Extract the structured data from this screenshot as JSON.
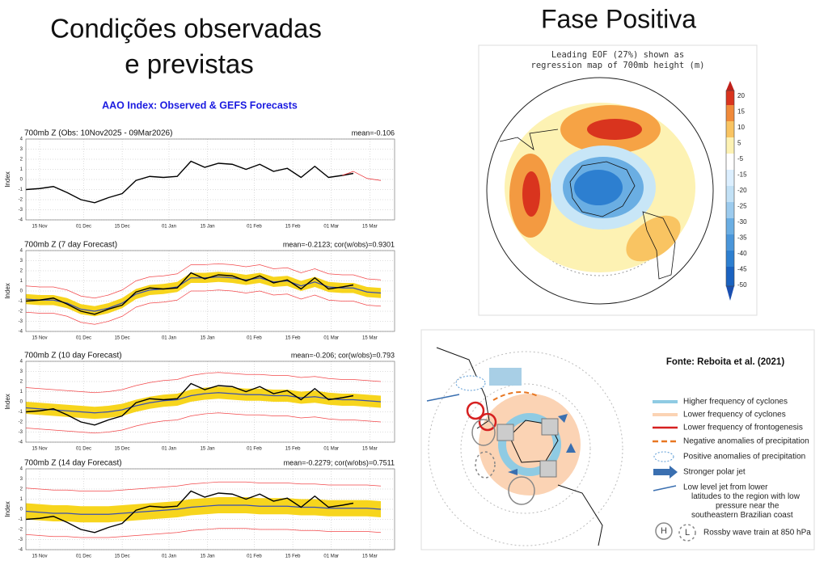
{
  "slide": {
    "title_left": [
      "Condições observadas",
      "e previstas"
    ],
    "title_right": "Fase Positiva",
    "header": "AAO Index: Observed & GEFS Forecasts"
  },
  "chart_data": [
    {
      "type": "line",
      "title": "700mb Z (Obs: 10Nov2025 - 09Mar2026)",
      "stats": "mean=-0.106",
      "ylabel": "Index",
      "x": [
        "2025-11-10",
        "2025-11-15",
        "2025-11-20",
        "2025-11-25",
        "2025-11-30",
        "2025-12-05",
        "2025-12-10",
        "2025-12-15",
        "2025-12-20",
        "2025-12-25",
        "2025-12-30",
        "2026-01-04",
        "2026-01-09",
        "2026-01-14",
        "2026-01-19",
        "2026-01-24",
        "2026-01-29",
        "2026-02-03",
        "2026-02-08",
        "2026-02-13",
        "2026-02-18",
        "2026-02-23",
        "2026-02-28",
        "2026-03-05",
        "2026-03-09",
        "2026-03-14",
        "2026-03-19"
      ],
      "xlim": [
        "2025-11-10",
        "2026-03-24"
      ],
      "xticks": [
        {
          "value": "2025-11-15",
          "label": "15 Nov"
        },
        {
          "value": "2025-12-01",
          "label": "01 Dec"
        },
        {
          "value": "2025-12-15",
          "label": "15 Dec"
        },
        {
          "value": "2026-01-01",
          "label": "01 Jan"
        },
        {
          "value": "2026-01-15",
          "label": "15 Jan"
        },
        {
          "value": "2026-02-01",
          "label": "01 Feb"
        },
        {
          "value": "2026-02-15",
          "label": "15 Feb"
        },
        {
          "value": "2026-03-01",
          "label": "01 Mar"
        },
        {
          "value": "2026-03-15",
          "label": "15 Mar"
        }
      ],
      "ylim": [
        -4,
        4
      ],
      "yticks": [
        -4,
        -3,
        -2,
        -1,
        0,
        1,
        2,
        3,
        4
      ],
      "grid": true,
      "bands": [],
      "series": [
        {
          "color": "#000000",
          "values": [
            -1.0,
            -0.9,
            -0.7,
            -1.3,
            -2.0,
            -2.3,
            -1.8,
            -1.4,
            -0.1,
            0.3,
            0.2,
            0.3,
            1.8,
            1.2,
            1.6,
            1.5,
            1.0,
            1.5,
            0.8,
            1.1,
            0.2,
            1.3,
            0.2,
            0.4,
            0.6,
            null,
            null
          ]
        },
        {
          "color": "#e8242a",
          "values": [
            null,
            null,
            null,
            null,
            null,
            null,
            null,
            null,
            null,
            null,
            null,
            null,
            null,
            null,
            null,
            null,
            null,
            null,
            null,
            null,
            null,
            null,
            null,
            0.4,
            0.8,
            0.1,
            -0.1
          ]
        }
      ]
    },
    {
      "type": "line",
      "title": "700mb Z (7 day Forecast)",
      "stats": "mean=-0.2123; cor(w/obs)=0.9301",
      "ylabel": "Index",
      "x": [
        "2025-11-10",
        "2025-11-15",
        "2025-11-20",
        "2025-11-25",
        "2025-11-30",
        "2025-12-05",
        "2025-12-10",
        "2025-12-15",
        "2025-12-20",
        "2025-12-25",
        "2025-12-30",
        "2026-01-04",
        "2026-01-09",
        "2026-01-14",
        "2026-01-19",
        "2026-01-24",
        "2026-01-29",
        "2026-02-03",
        "2026-02-08",
        "2026-02-13",
        "2026-02-18",
        "2026-02-23",
        "2026-02-28",
        "2026-03-05",
        "2026-03-09",
        "2026-03-14",
        "2026-03-19"
      ],
      "xlim": [
        "2025-11-10",
        "2026-03-24"
      ],
      "xticks": [
        {
          "value": "2025-11-15",
          "label": "15 Nov"
        },
        {
          "value": "2025-12-01",
          "label": "01 Dec"
        },
        {
          "value": "2025-12-15",
          "label": "15 Dec"
        },
        {
          "value": "2026-01-01",
          "label": "01 Jan"
        },
        {
          "value": "2026-01-15",
          "label": "15 Jan"
        },
        {
          "value": "2026-02-01",
          "label": "01 Feb"
        },
        {
          "value": "2026-02-15",
          "label": "15 Feb"
        },
        {
          "value": "2026-03-01",
          "label": "01 Mar"
        },
        {
          "value": "2026-03-15",
          "label": "15 Mar"
        }
      ],
      "ylim": [
        -4,
        4
      ],
      "yticks": [
        -4,
        -3,
        -2,
        -1,
        0,
        1,
        2,
        3,
        4
      ],
      "grid": true,
      "bands": [
        {
          "color": "#f7d51d",
          "lower": [
            -1.3,
            -1.4,
            -1.4,
            -1.7,
            -2.3,
            -2.5,
            -2.2,
            -1.7,
            -0.8,
            -0.4,
            -0.3,
            -0.1,
            0.8,
            0.8,
            0.9,
            0.8,
            0.6,
            0.8,
            0.4,
            0.5,
            0.0,
            0.4,
            -0.1,
            -0.2,
            -0.2,
            -0.6,
            -0.7
          ],
          "upper": [
            -0.3,
            -0.4,
            -0.4,
            -0.7,
            -1.3,
            -1.5,
            -1.2,
            -0.7,
            0.2,
            0.6,
            0.7,
            0.9,
            1.8,
            1.8,
            1.9,
            1.8,
            1.6,
            1.8,
            1.4,
            1.5,
            1.0,
            1.4,
            0.9,
            0.8,
            0.8,
            0.4,
            0.3
          ]
        }
      ],
      "series": [
        {
          "color": "#f2484b",
          "values": [
            -2.1,
            -2.2,
            -2.2,
            -2.5,
            -3.1,
            -3.3,
            -3.0,
            -2.5,
            -1.6,
            -1.2,
            -1.1,
            -0.9,
            0.0,
            0.0,
            0.1,
            0.0,
            -0.2,
            0.0,
            -0.4,
            -0.3,
            -0.8,
            -0.4,
            -0.9,
            -1.0,
            -1.0,
            -1.4,
            -1.5
          ]
        },
        {
          "color": "#f2484b",
          "values": [
            0.5,
            0.4,
            0.4,
            0.1,
            -0.5,
            -0.7,
            -0.4,
            0.1,
            1.0,
            1.4,
            1.5,
            1.7,
            2.6,
            2.6,
            2.7,
            2.6,
            2.4,
            2.6,
            2.2,
            2.3,
            1.8,
            2.2,
            1.7,
            1.6,
            1.6,
            1.2,
            1.1
          ]
        },
        {
          "color": "#3a4fb0",
          "values": [
            -0.8,
            -0.9,
            -0.9,
            -1.2,
            -1.8,
            -2.0,
            -1.7,
            -1.2,
            -0.3,
            0.1,
            0.2,
            0.4,
            1.3,
            1.3,
            1.4,
            1.3,
            1.1,
            1.3,
            0.9,
            1.0,
            0.5,
            0.9,
            0.4,
            0.3,
            0.3,
            -0.1,
            -0.2
          ]
        },
        {
          "color": "#000000",
          "values": [
            -1.0,
            -0.9,
            -0.7,
            -1.3,
            -2.0,
            -2.3,
            -1.8,
            -1.4,
            -0.1,
            0.3,
            0.2,
            0.3,
            1.8,
            1.2,
            1.6,
            1.5,
            1.0,
            1.5,
            0.8,
            1.1,
            0.2,
            1.3,
            0.2,
            0.4,
            0.6,
            null,
            null
          ]
        }
      ]
    },
    {
      "type": "line",
      "title": "700mb Z (10 day Forecast)",
      "stats": "mean=-0.206; cor(w/obs)=0.793",
      "ylabel": "Index",
      "x": [
        "2025-11-10",
        "2025-11-15",
        "2025-11-20",
        "2025-11-25",
        "2025-11-30",
        "2025-12-05",
        "2025-12-10",
        "2025-12-15",
        "2025-12-20",
        "2025-12-25",
        "2025-12-30",
        "2026-01-04",
        "2026-01-09",
        "2026-01-14",
        "2026-01-19",
        "2026-01-24",
        "2026-01-29",
        "2026-02-03",
        "2026-02-08",
        "2026-02-13",
        "2026-02-18",
        "2026-02-23",
        "2026-02-28",
        "2026-03-05",
        "2026-03-09",
        "2026-03-14",
        "2026-03-19"
      ],
      "xlim": [
        "2025-11-10",
        "2026-03-24"
      ],
      "xticks": [
        {
          "value": "2025-11-15",
          "label": "15 Nov"
        },
        {
          "value": "2025-12-01",
          "label": "01 Dec"
        },
        {
          "value": "2025-12-15",
          "label": "15 Dec"
        },
        {
          "value": "2026-01-01",
          "label": "01 Jan"
        },
        {
          "value": "2026-01-15",
          "label": "15 Jan"
        },
        {
          "value": "2026-02-01",
          "label": "01 Feb"
        },
        {
          "value": "2026-02-15",
          "label": "15 Feb"
        },
        {
          "value": "2026-03-01",
          "label": "01 Mar"
        },
        {
          "value": "2026-03-15",
          "label": "15 Mar"
        }
      ],
      "ylim": [
        -4,
        4
      ],
      "yticks": [
        -4,
        -3,
        -2,
        -1,
        0,
        1,
        2,
        3,
        4
      ],
      "grid": true,
      "bands": [
        {
          "color": "#f7d51d",
          "lower": [
            -1.2,
            -1.3,
            -1.4,
            -1.5,
            -1.6,
            -1.7,
            -1.6,
            -1.4,
            -1.0,
            -0.7,
            -0.5,
            -0.4,
            0.0,
            0.2,
            0.3,
            0.2,
            0.1,
            0.1,
            0.0,
            0.0,
            -0.2,
            -0.1,
            -0.3,
            -0.4,
            -0.4,
            -0.5,
            -0.6
          ],
          "upper": [
            0.0,
            -0.1,
            -0.2,
            -0.3,
            -0.4,
            -0.5,
            -0.4,
            -0.2,
            0.2,
            0.5,
            0.7,
            0.8,
            1.2,
            1.4,
            1.5,
            1.4,
            1.3,
            1.3,
            1.2,
            1.2,
            1.0,
            1.1,
            0.9,
            0.8,
            0.8,
            0.7,
            0.6
          ]
        }
      ],
      "series": [
        {
          "color": "#f2484b",
          "values": [
            -2.6,
            -2.7,
            -2.8,
            -2.9,
            -3.0,
            -3.1,
            -3.0,
            -2.8,
            -2.4,
            -2.1,
            -1.9,
            -1.8,
            -1.4,
            -1.2,
            -1.1,
            -1.2,
            -1.3,
            -1.3,
            -1.4,
            -1.4,
            -1.6,
            -1.5,
            -1.7,
            -1.8,
            -1.8,
            -1.9,
            -2.0
          ]
        },
        {
          "color": "#f2484b",
          "values": [
            1.4,
            1.3,
            1.2,
            1.1,
            1.0,
            0.9,
            1.0,
            1.2,
            1.6,
            1.9,
            2.1,
            2.2,
            2.6,
            2.8,
            2.9,
            2.8,
            2.7,
            2.7,
            2.6,
            2.6,
            2.4,
            2.5,
            2.3,
            2.2,
            2.2,
            2.1,
            2.0
          ]
        },
        {
          "color": "#3a4fb0",
          "values": [
            -0.6,
            -0.7,
            -0.8,
            -0.9,
            -1.0,
            -1.1,
            -1.0,
            -0.8,
            -0.4,
            -0.1,
            0.1,
            0.2,
            0.6,
            0.8,
            0.9,
            0.8,
            0.7,
            0.7,
            0.6,
            0.6,
            0.4,
            0.5,
            0.3,
            0.2,
            0.2,
            0.1,
            0.0
          ]
        },
        {
          "color": "#000000",
          "values": [
            -1.0,
            -0.9,
            -0.7,
            -1.3,
            -2.0,
            -2.3,
            -1.8,
            -1.4,
            -0.1,
            0.3,
            0.2,
            0.3,
            1.8,
            1.2,
            1.6,
            1.5,
            1.0,
            1.5,
            0.8,
            1.1,
            0.2,
            1.3,
            0.2,
            0.4,
            0.6,
            null,
            null
          ]
        }
      ]
    },
    {
      "type": "line",
      "title": "700mb Z (14 day Forecast)",
      "stats": "mean=-0.2279; cor(w/obs)=0.7511",
      "ylabel": "Index",
      "x": [
        "2025-11-10",
        "2025-11-15",
        "2025-11-20",
        "2025-11-25",
        "2025-11-30",
        "2025-12-05",
        "2025-12-10",
        "2025-12-15",
        "2025-12-20",
        "2025-12-25",
        "2025-12-30",
        "2026-01-04",
        "2026-01-09",
        "2026-01-14",
        "2026-01-19",
        "2026-01-24",
        "2026-01-29",
        "2026-02-03",
        "2026-02-08",
        "2026-02-13",
        "2026-02-18",
        "2026-02-23",
        "2026-02-28",
        "2026-03-05",
        "2026-03-09",
        "2026-03-14",
        "2026-03-19"
      ],
      "xlim": [
        "2025-11-10",
        "2026-03-24"
      ],
      "xticks": [
        {
          "value": "2025-11-15",
          "label": "15 Nov"
        },
        {
          "value": "2025-12-01",
          "label": "01 Dec"
        },
        {
          "value": "2025-12-15",
          "label": "15 Dec"
        },
        {
          "value": "2026-01-01",
          "label": "01 Jan"
        },
        {
          "value": "2026-01-15",
          "label": "15 Jan"
        },
        {
          "value": "2026-02-01",
          "label": "01 Feb"
        },
        {
          "value": "2026-02-15",
          "label": "15 Feb"
        },
        {
          "value": "2026-03-01",
          "label": "01 Mar"
        },
        {
          "value": "2026-03-15",
          "label": "15 Mar"
        }
      ],
      "ylim": [
        -4,
        4
      ],
      "yticks": [
        -4,
        -3,
        -2,
        -1,
        0,
        1,
        2,
        3,
        4
      ],
      "grid": true,
      "bands": [
        {
          "color": "#f7d51d",
          "lower": [
            -1.0,
            -1.1,
            -1.2,
            -1.2,
            -1.3,
            -1.3,
            -1.3,
            -1.2,
            -1.1,
            -1.0,
            -0.9,
            -0.8,
            -0.6,
            -0.5,
            -0.4,
            -0.4,
            -0.4,
            -0.5,
            -0.5,
            -0.5,
            -0.6,
            -0.6,
            -0.7,
            -0.7,
            -0.7,
            -0.7,
            -0.8
          ],
          "upper": [
            0.6,
            0.5,
            0.4,
            0.4,
            0.3,
            0.3,
            0.3,
            0.4,
            0.5,
            0.6,
            0.7,
            0.8,
            1.0,
            1.1,
            1.2,
            1.2,
            1.2,
            1.1,
            1.1,
            1.1,
            1.0,
            1.0,
            0.9,
            0.9,
            0.9,
            0.9,
            0.8
          ]
        }
      ],
      "series": [
        {
          "color": "#f2484b",
          "values": [
            -2.5,
            -2.6,
            -2.7,
            -2.7,
            -2.8,
            -2.8,
            -2.8,
            -2.7,
            -2.6,
            -2.5,
            -2.4,
            -2.3,
            -2.1,
            -2.0,
            -1.9,
            -1.9,
            -1.9,
            -2.0,
            -2.0,
            -2.0,
            -2.1,
            -2.1,
            -2.2,
            -2.2,
            -2.2,
            -2.2,
            -2.3
          ]
        },
        {
          "color": "#f2484b",
          "values": [
            2.1,
            2.0,
            1.9,
            1.9,
            1.8,
            1.8,
            1.8,
            1.9,
            2.0,
            2.1,
            2.2,
            2.3,
            2.5,
            2.6,
            2.7,
            2.7,
            2.7,
            2.6,
            2.6,
            2.6,
            2.5,
            2.5,
            2.4,
            2.4,
            2.4,
            2.4,
            2.3
          ]
        },
        {
          "color": "#3a4fb0",
          "values": [
            -0.2,
            -0.3,
            -0.4,
            -0.4,
            -0.5,
            -0.5,
            -0.5,
            -0.4,
            -0.3,
            -0.2,
            -0.1,
            0.0,
            0.2,
            0.3,
            0.4,
            0.4,
            0.4,
            0.3,
            0.3,
            0.3,
            0.2,
            0.2,
            0.1,
            0.1,
            0.1,
            0.1,
            0.0
          ]
        },
        {
          "color": "#000000",
          "values": [
            -1.0,
            -0.9,
            -0.7,
            -1.3,
            -2.0,
            -2.3,
            -1.8,
            -1.4,
            -0.1,
            0.3,
            0.2,
            0.3,
            1.8,
            1.2,
            1.6,
            1.5,
            1.0,
            1.5,
            0.8,
            1.1,
            0.2,
            1.3,
            0.2,
            0.4,
            0.6,
            null,
            null
          ]
        }
      ]
    }
  ],
  "eof_map": {
    "title": [
      "Leading EOF (27%) shown as",
      "regression map of 700mb height (m)"
    ],
    "colorbar_labels": [
      20,
      15,
      10,
      5,
      -5,
      -15,
      -20,
      -25,
      -30,
      -35,
      -40,
      -45,
      -50
    ]
  },
  "diagram": {
    "source": "Fonte: Reboita et al. (2021)",
    "legend": [
      [
        "Higher frequency of cyclones"
      ],
      [
        "Lower frequency of cyclones"
      ],
      [
        "Lower frequency of frontogenesis"
      ],
      [
        "Negative anomalies of precipitation"
      ],
      [
        "Positive anomalies of precipitation"
      ],
      [
        "Stronger polar jet"
      ],
      [
        "Low level jet from lower",
        "latitudes to the region with low",
        "pressure near the",
        "southeastern Brazilian coast"
      ],
      [
        "Rossby wave train at 850 hPa"
      ]
    ],
    "high": "H",
    "low": "L"
  }
}
